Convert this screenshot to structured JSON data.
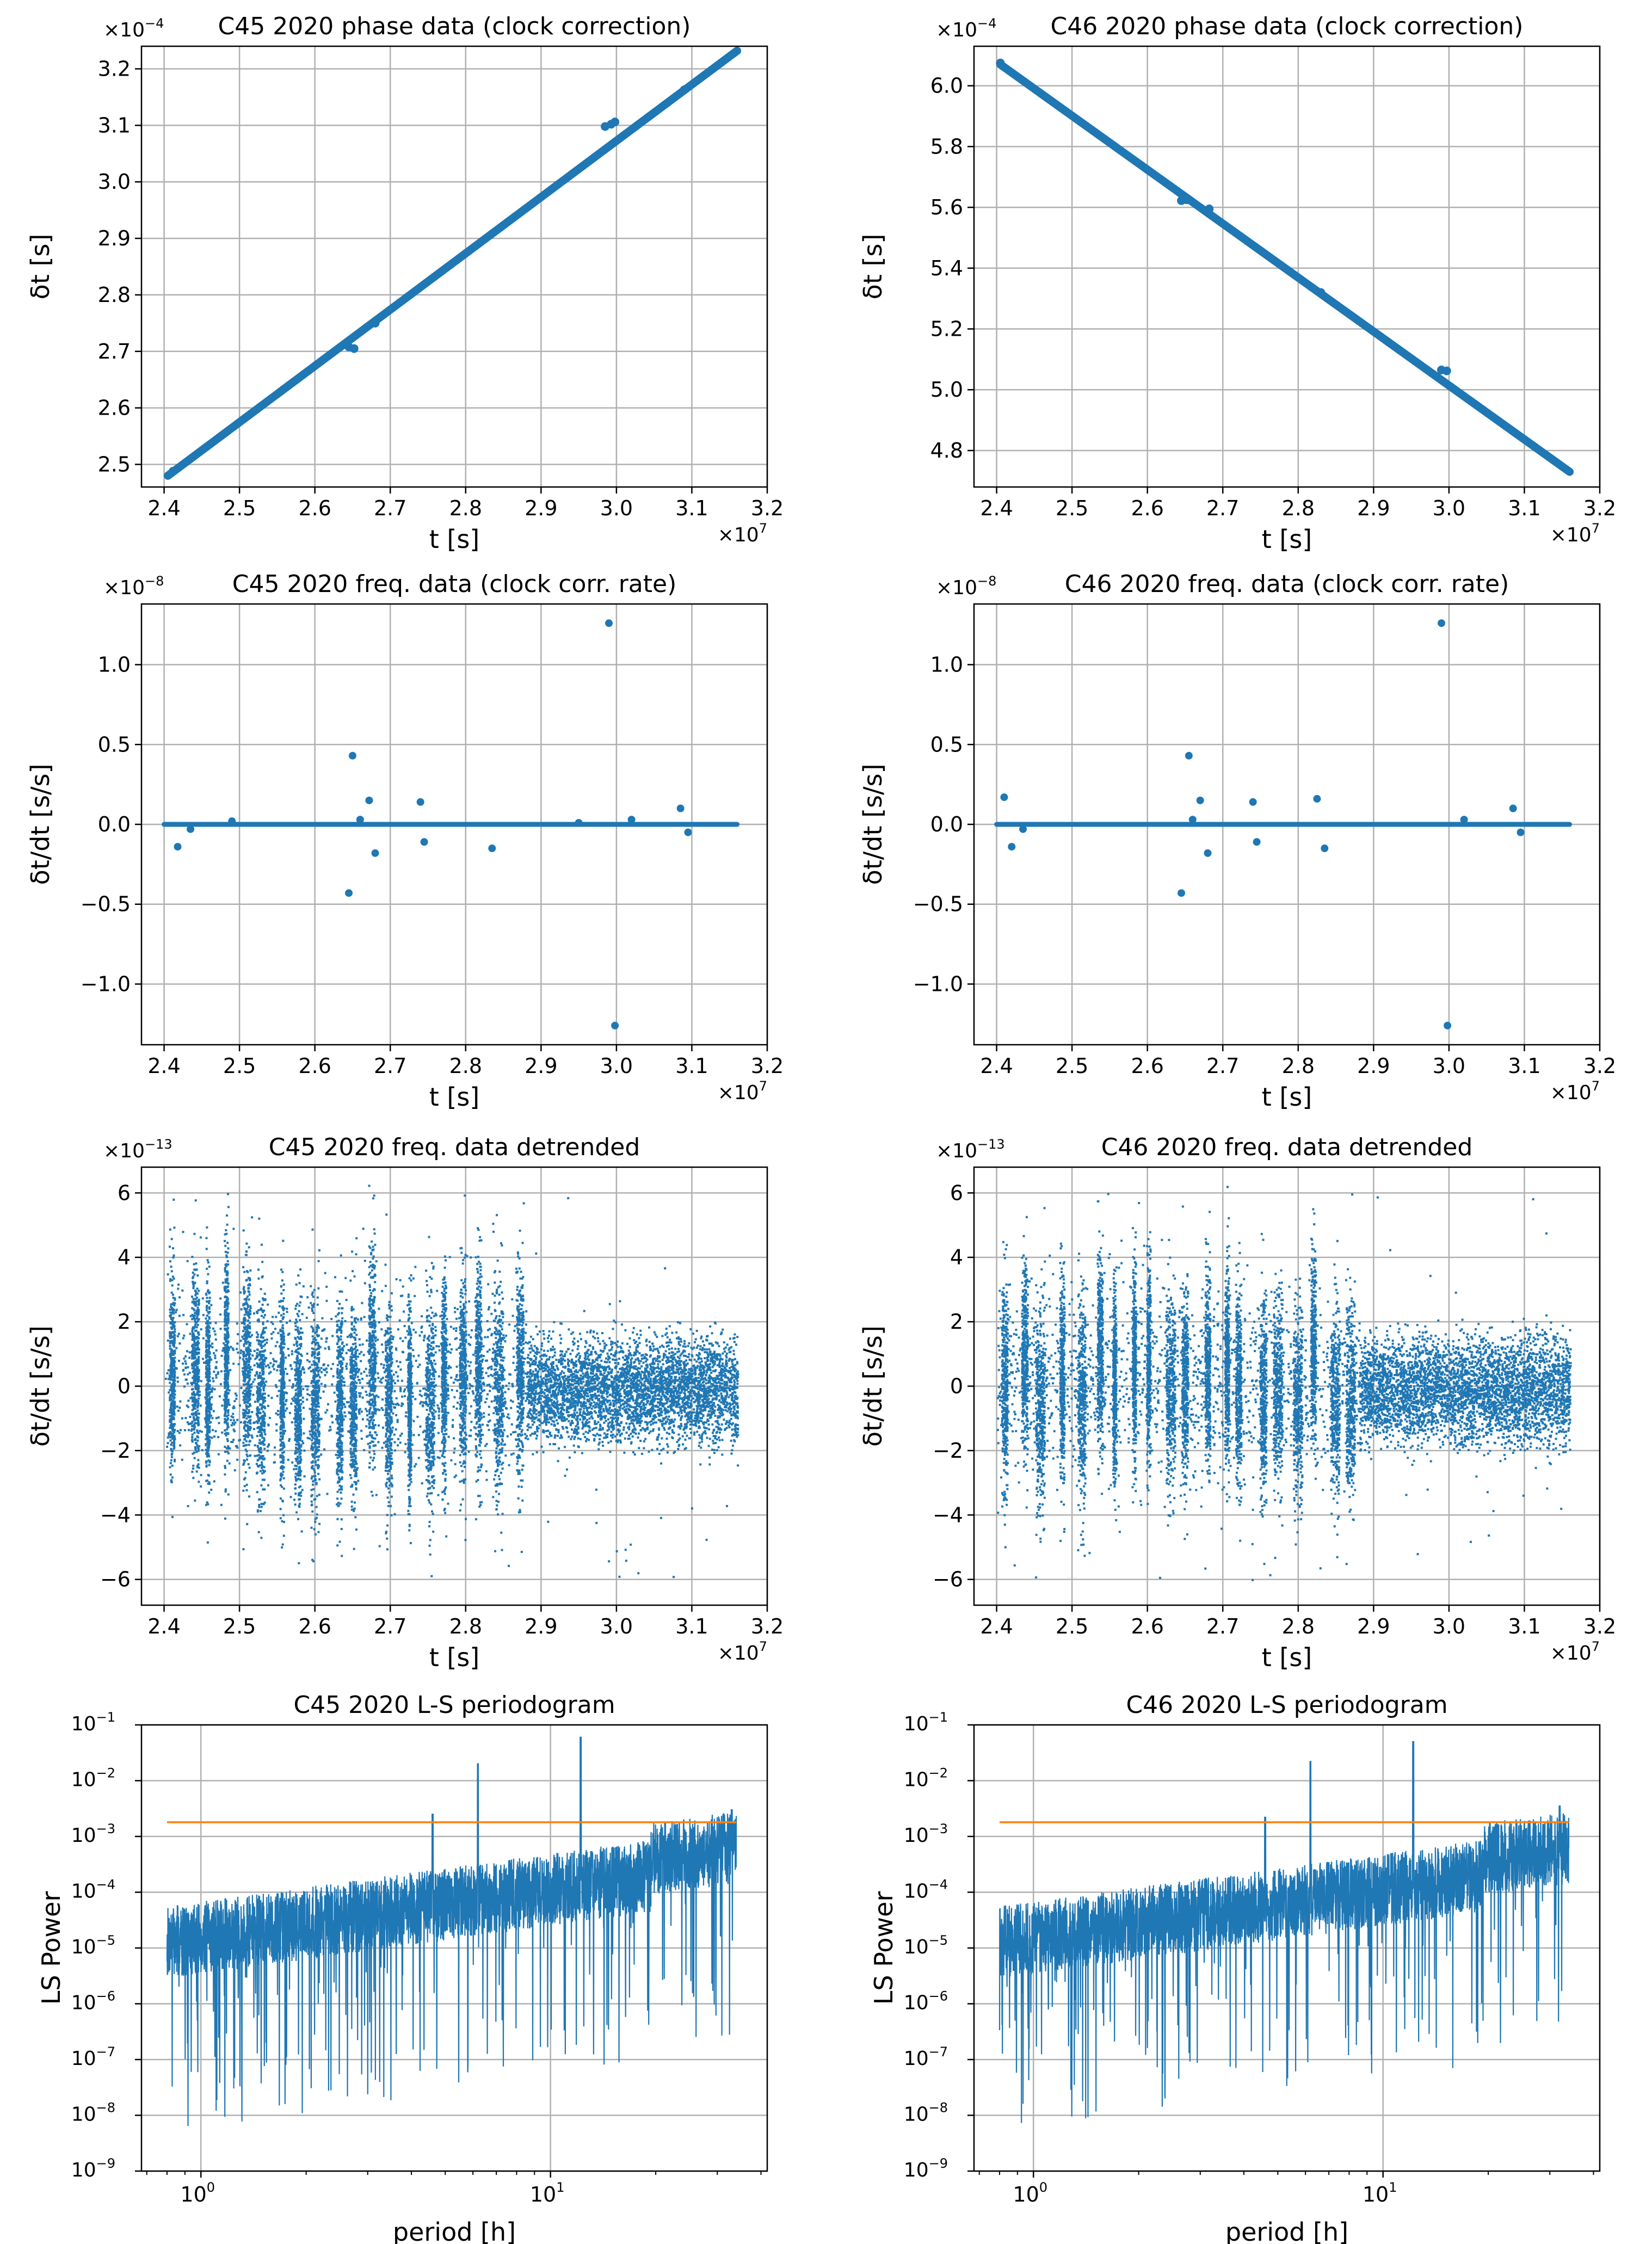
{
  "colors": {
    "series": "#1f77b4",
    "threshold": "#ff7f0e",
    "grid": "#b0b0b0",
    "axis": "#000000"
  },
  "chart_data": [
    {
      "id": "p1",
      "type": "scatter",
      "variant": "phase",
      "slope": "up",
      "title": "C45 2020 phase data (clock correction)",
      "xlabel": "t [s]",
      "ylabel": "δt [s]",
      "x_multiplier": "×10",
      "x_exponent": "7",
      "y_multiplier": "×10",
      "y_exponent": "−4",
      "xlim": [
        2.37,
        3.2
      ],
      "ylim": [
        2.46,
        3.24
      ],
      "xticks": [
        "2.4",
        "2.5",
        "2.6",
        "2.7",
        "2.8",
        "2.9",
        "3.0",
        "3.1",
        "3.2"
      ],
      "yticks": [
        "2.5",
        "2.6",
        "2.7",
        "2.8",
        "2.9",
        "3.0",
        "3.1",
        "3.2"
      ],
      "series": [
        {
          "name": "phase",
          "line": [
            [
              2.405,
              2.48
            ],
            [
              3.16,
              3.232
            ]
          ]
        },
        {
          "name": "offset points",
          "points": [
            [
              2.412,
              2.488
            ],
            [
              2.645,
              2.708
            ],
            [
              2.652,
              2.705
            ],
            [
              2.68,
              2.75
            ],
            [
              2.985,
              3.098
            ],
            [
              2.993,
              3.102
            ],
            [
              2.998,
              3.106
            ],
            [
              3.09,
              3.163
            ]
          ]
        }
      ]
    },
    {
      "id": "p2",
      "type": "scatter",
      "variant": "phase",
      "slope": "down",
      "title": "C46 2020 phase data (clock correction)",
      "xlabel": "t [s]",
      "ylabel": "δt [s]",
      "x_multiplier": "×10",
      "x_exponent": "7",
      "y_multiplier": "×10",
      "y_exponent": "−4",
      "xlim": [
        2.37,
        3.2
      ],
      "ylim": [
        4.68,
        6.13
      ],
      "xticks": [
        "2.4",
        "2.5",
        "2.6",
        "2.7",
        "2.8",
        "2.9",
        "3.0",
        "3.1",
        "3.2"
      ],
      "yticks": [
        "4.8",
        "5.0",
        "5.2",
        "5.4",
        "5.6",
        "5.8",
        "6.0"
      ],
      "series": [
        {
          "name": "phase",
          "line": [
            [
              2.405,
              6.07
            ],
            [
              3.16,
              4.73
            ]
          ]
        },
        {
          "name": "offset points",
          "points": [
            [
              2.405,
              6.075
            ],
            [
              2.645,
              5.622
            ],
            [
              2.652,
              5.625
            ],
            [
              2.682,
              5.595
            ],
            [
              2.99,
              5.065
            ],
            [
              2.997,
              5.062
            ],
            [
              2.83,
              5.32
            ]
          ]
        }
      ]
    },
    {
      "id": "p3",
      "type": "scatter",
      "variant": "rate",
      "title": "C45 2020 freq. data (clock corr. rate)",
      "xlabel": "t [s]",
      "ylabel": "δt/dt  [s/s]",
      "x_multiplier": "×10",
      "x_exponent": "7",
      "y_multiplier": "×10",
      "y_exponent": "−8",
      "xlim": [
        2.37,
        3.2
      ],
      "ylim": [
        -1.38,
        1.38
      ],
      "xticks": [
        "2.4",
        "2.5",
        "2.6",
        "2.7",
        "2.8",
        "2.9",
        "3.0",
        "3.1",
        "3.2"
      ],
      "yticks": [
        "−1.0",
        "−0.5",
        "0.0",
        "0.5",
        "1.0"
      ],
      "series": [
        {
          "name": "baseline",
          "line": [
            [
              2.4,
              0.0
            ],
            [
              3.16,
              0.0
            ]
          ]
        },
        {
          "name": "outliers",
          "points": [
            [
              2.418,
              -0.14
            ],
            [
              2.435,
              -0.03
            ],
            [
              2.49,
              0.02
            ],
            [
              2.65,
              0.43
            ],
            [
              2.645,
              -0.43
            ],
            [
              2.672,
              0.15
            ],
            [
              2.68,
              -0.18
            ],
            [
              2.74,
              0.14
            ],
            [
              2.745,
              -0.11
            ],
            [
              2.835,
              -0.15
            ],
            [
              2.99,
              1.26
            ],
            [
              2.998,
              -1.26
            ],
            [
              3.02,
              0.03
            ],
            [
              3.085,
              0.1
            ],
            [
              3.095,
              -0.05
            ],
            [
              2.95,
              0.01
            ],
            [
              2.66,
              0.03
            ]
          ]
        }
      ]
    },
    {
      "id": "p4",
      "type": "scatter",
      "variant": "rate",
      "title": "C46 2020 freq. data (clock corr. rate)",
      "xlabel": "t [s]",
      "ylabel": "δt/dt  [s/s]",
      "x_multiplier": "×10",
      "x_exponent": "7",
      "y_multiplier": "×10",
      "y_exponent": "−8",
      "xlim": [
        2.37,
        3.2
      ],
      "ylim": [
        -1.38,
        1.38
      ],
      "xticks": [
        "2.4",
        "2.5",
        "2.6",
        "2.7",
        "2.8",
        "2.9",
        "3.0",
        "3.1",
        "3.2"
      ],
      "yticks": [
        "−1.0",
        "−0.5",
        "0.0",
        "0.5",
        "1.0"
      ],
      "series": [
        {
          "name": "baseline",
          "line": [
            [
              2.4,
              0.0
            ],
            [
              3.16,
              0.0
            ]
          ]
        },
        {
          "name": "outliers",
          "points": [
            [
              2.41,
              0.17
            ],
            [
              2.42,
              -0.14
            ],
            [
              2.435,
              -0.03
            ],
            [
              2.645,
              -0.43
            ],
            [
              2.655,
              0.43
            ],
            [
              2.67,
              0.15
            ],
            [
              2.68,
              -0.18
            ],
            [
              2.74,
              0.14
            ],
            [
              2.745,
              -0.11
            ],
            [
              2.825,
              0.16
            ],
            [
              2.835,
              -0.15
            ],
            [
              2.99,
              1.26
            ],
            [
              2.998,
              -1.26
            ],
            [
              3.02,
              0.03
            ],
            [
              3.085,
              0.1
            ],
            [
              3.095,
              -0.05
            ],
            [
              2.66,
              0.03
            ]
          ]
        }
      ]
    },
    {
      "id": "p5",
      "type": "scatter",
      "variant": "detrended",
      "seed": 45,
      "title": "C45 2020 freq. data detrended",
      "xlabel": "t [s]",
      "ylabel": "δt/dt [s/s]",
      "x_multiplier": "×10",
      "x_exponent": "7",
      "y_multiplier": "×10",
      "y_exponent": "−13",
      "xlim": [
        2.37,
        3.2
      ],
      "ylim": [
        -6.8,
        6.8
      ],
      "xticks": [
        "2.4",
        "2.5",
        "2.6",
        "2.7",
        "2.8",
        "2.9",
        "3.0",
        "3.1",
        "3.2"
      ],
      "yticks": [
        "−6",
        "−4",
        "−2",
        "0",
        "2",
        "4",
        "6"
      ],
      "x_range": [
        2.4,
        3.16
      ],
      "regime_change_x": 2.88,
      "segment_before": {
        "mean": 0.2,
        "spread": 1.6,
        "bursts": 20
      },
      "segment_after": {
        "mean": -0.1,
        "spread": 0.8
      }
    },
    {
      "id": "p6",
      "type": "scatter",
      "variant": "detrended",
      "seed": 46,
      "title": "C46 2020 freq. data detrended",
      "xlabel": "t [s]",
      "ylabel": "δt/dt [s/s]",
      "x_multiplier": "×10",
      "x_exponent": "7",
      "y_multiplier": "×10",
      "y_exponent": "−13",
      "xlim": [
        2.37,
        3.2
      ],
      "ylim": [
        -6.8,
        6.8
      ],
      "xticks": [
        "2.4",
        "2.5",
        "2.6",
        "2.7",
        "2.8",
        "2.9",
        "3.0",
        "3.1",
        "3.2"
      ],
      "yticks": [
        "−6",
        "−4",
        "−2",
        "0",
        "2",
        "4",
        "6"
      ],
      "x_range": [
        2.4,
        3.16
      ],
      "regime_change_x": 2.88,
      "segment_before": {
        "mean": 0.2,
        "spread": 1.6,
        "bursts": 20
      },
      "segment_after": {
        "mean": -0.1,
        "spread": 0.8
      }
    },
    {
      "id": "p7",
      "type": "line",
      "variant": "periodogram",
      "seed": 7,
      "title": "C45 2020 L-S periodogram",
      "xlabel": "period [h]",
      "ylabel": "LS Power",
      "xscale": "log",
      "yscale": "log",
      "xlim_log10": [
        -0.17,
        1.62
      ],
      "ylim_log10": [
        -9,
        -1
      ],
      "xticks_log10": [
        0,
        1
      ],
      "yticks_log10": [
        -9,
        -8,
        -7,
        -6,
        -5,
        -4,
        -3,
        -2,
        -1
      ],
      "tick_base": "10",
      "period_range": [
        0.8,
        34
      ],
      "threshold": 0.0018,
      "peaks": [
        [
          6.2,
          0.02
        ],
        [
          12.2,
          0.06
        ],
        [
          4.6,
          0.0025
        ],
        [
          33,
          0.003
        ]
      ]
    },
    {
      "id": "p8",
      "type": "line",
      "variant": "periodogram",
      "seed": 8,
      "title": "C46 2020 L-S periodogram",
      "xlabel": "period [h]",
      "ylabel": "LS Power",
      "xscale": "log",
      "yscale": "log",
      "xlim_log10": [
        -0.17,
        1.62
      ],
      "ylim_log10": [
        -9,
        -1
      ],
      "xticks_log10": [
        0,
        1
      ],
      "yticks_log10": [
        -9,
        -8,
        -7,
        -6,
        -5,
        -4,
        -3,
        -2,
        -1
      ],
      "tick_base": "10",
      "period_range": [
        0.8,
        34
      ],
      "threshold": 0.0018,
      "peaks": [
        [
          6.2,
          0.022
        ],
        [
          12.2,
          0.05
        ],
        [
          4.6,
          0.0022
        ],
        [
          32,
          0.0035
        ]
      ]
    }
  ]
}
